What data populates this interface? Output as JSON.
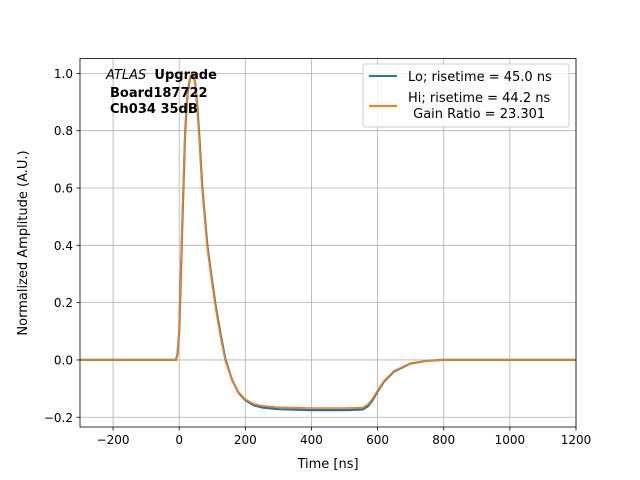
{
  "chart_data": {
    "type": "line",
    "title": "",
    "xlabel": "Time [ns]",
    "ylabel": "Normalized Amplitude (A.U.)",
    "xlim": [
      -300,
      1200
    ],
    "ylim": [
      -0.234,
      1.052
    ],
    "xticks": [
      -200,
      0,
      200,
      400,
      600,
      800,
      1000,
      1200
    ],
    "yticks": [
      -0.2,
      0.0,
      0.2,
      0.4,
      0.6,
      0.8,
      1.0
    ],
    "xtick_labels": [
      "−200",
      "0",
      "200",
      "400",
      "600",
      "800",
      "1000",
      "1200"
    ],
    "ytick_labels": [
      "−0.2",
      "0.0",
      "0.2",
      "0.4",
      "0.6",
      "0.8",
      "1.0"
    ],
    "grid": true,
    "legend_position": "top-right",
    "annotation": {
      "italic": "ATLAS",
      "bold": "Upgrade",
      "line2": "Board187722",
      "line3": "Ch034 35dB"
    },
    "series": [
      {
        "name": "Lo; risetime = 45.0 ns",
        "color": "#1f77b4",
        "x": [
          -300,
          -10,
          -5,
          0,
          5,
          10,
          18,
          25,
          32,
          40,
          48,
          55,
          62,
          70,
          85,
          100,
          110,
          125,
          140,
          160,
          180,
          200,
          225,
          250,
          300,
          400,
          500,
          555,
          570,
          585,
          600,
          620,
          650,
          700,
          750,
          800,
          1200
        ],
        "y": [
          0,
          0,
          0.02,
          0.1,
          0.3,
          0.5,
          0.8,
          0.93,
          0.98,
          1.0,
          0.97,
          0.88,
          0.76,
          0.6,
          0.4,
          0.27,
          0.19,
          0.09,
          0.0,
          -0.07,
          -0.115,
          -0.14,
          -0.158,
          -0.166,
          -0.172,
          -0.175,
          -0.175,
          -0.173,
          -0.162,
          -0.14,
          -0.11,
          -0.075,
          -0.04,
          -0.012,
          -0.003,
          0,
          0
        ]
      },
      {
        "name": "Hi; risetime = 44.2 ns",
        "name_line2": " Gain Ratio = 23.301",
        "color": "#ff7f0e",
        "x": [
          -300,
          -10,
          -5,
          0,
          5,
          10,
          18,
          25,
          32,
          40,
          48,
          55,
          62,
          70,
          85,
          100,
          110,
          125,
          140,
          160,
          180,
          200,
          225,
          250,
          300,
          400,
          500,
          555,
          570,
          585,
          600,
          620,
          650,
          700,
          750,
          800,
          1200
        ],
        "y": [
          0,
          0,
          0.02,
          0.11,
          0.32,
          0.52,
          0.81,
          0.94,
          0.985,
          1.0,
          0.97,
          0.87,
          0.75,
          0.59,
          0.39,
          0.26,
          0.18,
          0.08,
          -0.005,
          -0.07,
          -0.113,
          -0.137,
          -0.153,
          -0.16,
          -0.165,
          -0.168,
          -0.168,
          -0.166,
          -0.156,
          -0.135,
          -0.106,
          -0.072,
          -0.038,
          -0.011,
          -0.003,
          0,
          0
        ]
      }
    ]
  }
}
